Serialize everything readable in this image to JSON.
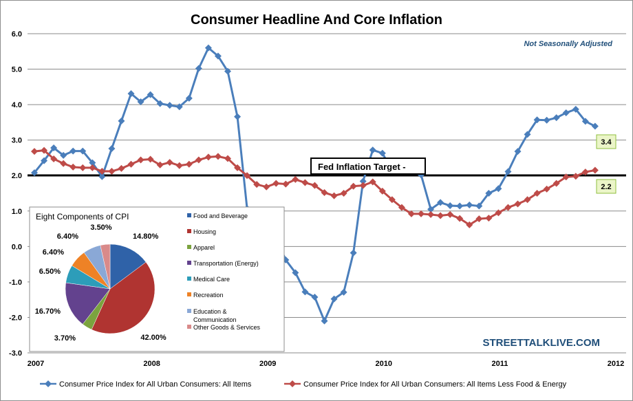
{
  "chart_data": [
    {
      "type": "line",
      "title": "Consumer Headline And Core Inflation",
      "subtitle": "Not Seasonally Adjusted",
      "ylim": [
        -3.0,
        6.0
      ],
      "yticks": [
        "6.0",
        "5.0",
        "4.0",
        "3.0",
        "2.0",
        "1.0",
        "0.0",
        "-1.0",
        "-2.0",
        "-3.0"
      ],
      "ytick_values": [
        6,
        5,
        4,
        3,
        2,
        1,
        0,
        -1,
        -2,
        -3
      ],
      "xticks": [
        "2007",
        "2008",
        "2009",
        "2010",
        "2011",
        "2012"
      ],
      "grid": true,
      "legend_position": "bottom",
      "x_start": "Jan 2007",
      "x_step": "month",
      "series": [
        {
          "name": "Consumer Price Index for All Urban Consumers: All Items",
          "color": "#4a7ebb",
          "last_label": "3.4",
          "values": [
            2.08,
            2.42,
            2.78,
            2.57,
            2.69,
            2.69,
            2.36,
            1.97,
            2.76,
            3.54,
            4.31,
            4.08,
            4.28,
            4.03,
            3.98,
            3.94,
            4.18,
            5.02,
            5.6,
            5.37,
            4.94,
            3.66,
            1.07,
            0.09,
            0.03,
            0.24,
            -0.38,
            -0.74,
            -1.28,
            -1.43,
            -2.1,
            -1.48,
            -1.29,
            -0.18,
            1.84,
            2.72,
            2.63,
            2.14,
            2.31,
            2.24,
            2.02,
            1.05,
            1.24,
            1.15,
            1.14,
            1.17,
            1.14,
            1.5,
            1.63,
            2.11,
            2.68,
            3.16,
            3.57,
            3.56,
            3.63,
            3.77,
            3.87,
            3.53,
            3.39
          ]
        },
        {
          "name": "Consumer Price Index for All Urban Consumers: All Items Less Food & Energy",
          "color": "#be4b48",
          "last_label": "2.2",
          "values": [
            2.68,
            2.71,
            2.47,
            2.34,
            2.24,
            2.22,
            2.22,
            2.12,
            2.12,
            2.2,
            2.32,
            2.44,
            2.46,
            2.3,
            2.37,
            2.28,
            2.32,
            2.44,
            2.52,
            2.54,
            2.48,
            2.22,
            2.0,
            1.75,
            1.68,
            1.78,
            1.76,
            1.89,
            1.8,
            1.72,
            1.52,
            1.43,
            1.5,
            1.7,
            1.72,
            1.82,
            1.56,
            1.32,
            1.1,
            0.92,
            0.92,
            0.9,
            0.87,
            0.9,
            0.79,
            0.61,
            0.78,
            0.8,
            0.95,
            1.1,
            1.2,
            1.32,
            1.5,
            1.62,
            1.78,
            1.96,
            1.98,
            2.1,
            2.15
          ]
        }
      ],
      "annotations": {
        "target_label": "Fed Inflation Target -",
        "target_value": 2.0,
        "watermark": "STREETTALKLIVE.COM"
      }
    },
    {
      "type": "pie",
      "title": "Eight Components of CPI",
      "labels": [
        "Food and Beverage",
        "Housing",
        "Apparel",
        "Transportation (Energy)",
        "Medical Care",
        "Recreation",
        "Education & Communication",
        "Other Goods & Services"
      ],
      "values": [
        14.8,
        42.0,
        3.7,
        16.7,
        6.5,
        6.4,
        6.4,
        3.5
      ],
      "value_labels": [
        "14.80%",
        "42.00%",
        "3.70%",
        "16.70%",
        "6.50%",
        "6.40%",
        "6.40%",
        "3.50%"
      ],
      "colors": [
        "#2f62a8",
        "#b03431",
        "#7ba33e",
        "#63428e",
        "#2d9db9",
        "#ee8226",
        "#8aa8d6",
        "#d98a8a"
      ],
      "legend_position": "right"
    }
  ]
}
